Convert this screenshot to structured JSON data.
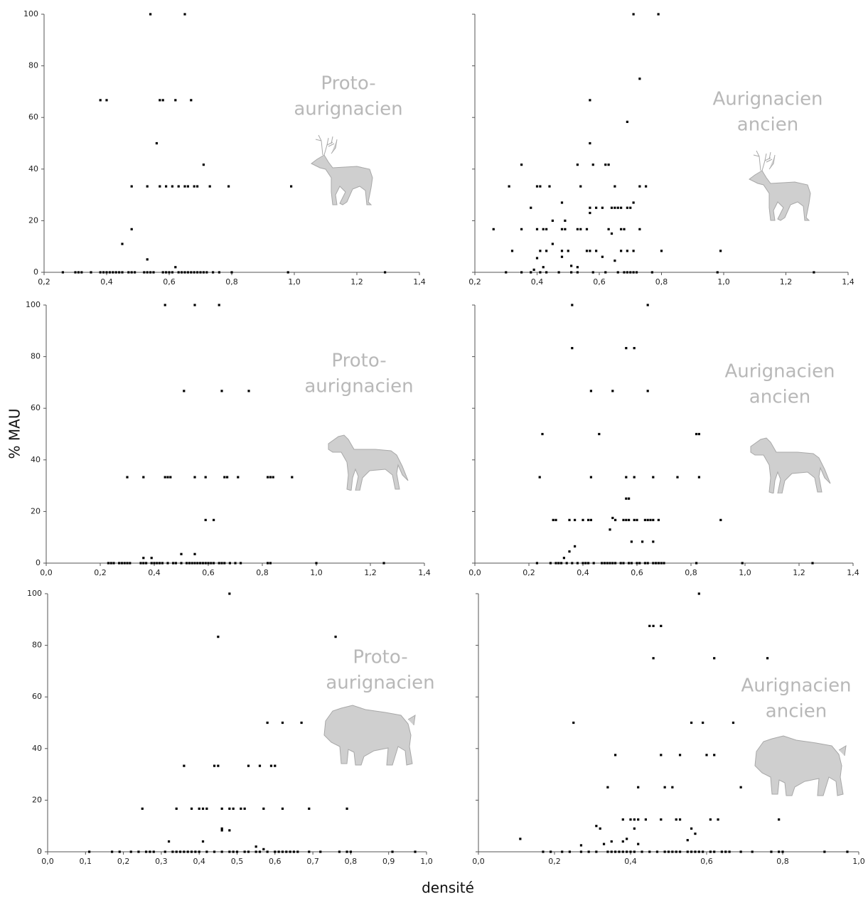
{
  "y_label": "% MAU",
  "x_label": "densité",
  "chart_data": [
    {
      "type": "scatter",
      "annotation": [
        "Proto-",
        "aurignacien"
      ],
      "color": "#000000",
      "ytick_labels": true,
      "xlim": [
        0.2,
        1.4
      ],
      "ylim": [
        0,
        100
      ],
      "xticks": [
        {
          "value": 0.2,
          "label": "0,2"
        },
        {
          "value": 0.4,
          "label": "0,4"
        },
        {
          "value": 0.6,
          "label": "0,6"
        },
        {
          "value": 0.8,
          "label": "0,8"
        },
        {
          "value": 1.0,
          "label": "1,0"
        },
        {
          "value": 1.2,
          "label": "1,2"
        },
        {
          "value": 1.4,
          "label": "1,4"
        }
      ],
      "yticks": [
        0,
        20,
        40,
        60,
        80,
        100
      ],
      "x": [
        0.26,
        0.3,
        0.31,
        0.32,
        0.35,
        0.38,
        0.39,
        0.4,
        0.41,
        0.42,
        0.43,
        0.44,
        0.45,
        0.47,
        0.48,
        0.49,
        0.52,
        0.53,
        0.54,
        0.55,
        0.58,
        0.59,
        0.6,
        0.61,
        0.63,
        0.64,
        0.65,
        0.66,
        0.67,
        0.68,
        0.69,
        0.7,
        0.71,
        0.72,
        0.74,
        0.76,
        0.8,
        0.98,
        1.29,
        0.54,
        0.65,
        0.38,
        0.4,
        0.57,
        0.58,
        0.62,
        0.67,
        0.56,
        0.71,
        0.48,
        0.53,
        0.57,
        0.59,
        0.61,
        0.63,
        0.65,
        0.66,
        0.68,
        0.69,
        0.73,
        0.79,
        0.99,
        0.48,
        0.45,
        0.53,
        0.62
      ],
      "values": [
        0,
        0,
        0,
        0,
        0,
        0,
        0,
        0,
        0,
        0,
        0,
        0,
        0,
        0,
        0,
        0,
        0,
        0,
        0,
        0,
        0,
        0,
        0,
        0,
        0,
        0,
        0,
        0,
        0,
        0,
        0,
        0,
        0,
        0,
        0,
        0,
        0,
        0,
        0,
        100,
        100,
        66.7,
        66.7,
        66.7,
        66.7,
        66.7,
        66.7,
        50,
        41.7,
        33.3,
        33.3,
        33.3,
        33.3,
        33.3,
        33.3,
        33.3,
        33.3,
        33.3,
        33.3,
        33.3,
        33.3,
        33.3,
        16.7,
        11,
        5,
        2
      ]
    },
    {
      "type": "scatter",
      "annotation": [
        "Aurignacien",
        "ancien"
      ],
      "color": "#000000",
      "ytick_labels": false,
      "xlim": [
        0.2,
        1.4
      ],
      "ylim": [
        0,
        100
      ],
      "xticks": [
        {
          "value": 0.2,
          "label": "0,2"
        },
        {
          "value": 0.4,
          "label": "0,4"
        },
        {
          "value": 0.6,
          "label": "0,6"
        },
        {
          "value": 0.8,
          "label": "0,8"
        },
        {
          "value": 1.0,
          "label": "1,0"
        },
        {
          "value": 1.2,
          "label": "1,2"
        },
        {
          "value": 1.4,
          "label": "1,4"
        }
      ],
      "yticks": [
        0,
        20,
        40,
        60,
        80,
        100
      ],
      "x": [
        0.3,
        0.35,
        0.38,
        0.41,
        0.43,
        0.47,
        0.51,
        0.53,
        0.58,
        0.62,
        0.66,
        0.68,
        0.69,
        0.7,
        0.71,
        0.72,
        0.77,
        0.98,
        1.29,
        0.71,
        0.79,
        0.73,
        0.57,
        0.69,
        0.57,
        0.35,
        0.53,
        0.58,
        0.62,
        0.63,
        0.31,
        0.4,
        0.41,
        0.44,
        0.54,
        0.65,
        0.73,
        0.75,
        0.48,
        0.71,
        0.38,
        0.57,
        0.59,
        0.61,
        0.64,
        0.65,
        0.66,
        0.67,
        0.69,
        0.7,
        0.57,
        0.49,
        0.45,
        0.26,
        0.35,
        0.4,
        0.42,
        0.43,
        0.48,
        0.49,
        0.53,
        0.54,
        0.56,
        0.63,
        0.67,
        0.68,
        0.73,
        0.64,
        0.45,
        0.32,
        0.41,
        0.43,
        0.48,
        0.5,
        0.56,
        0.57,
        0.59,
        0.67,
        0.69,
        0.71,
        0.8,
        0.99,
        0.4,
        0.48,
        0.61,
        0.65,
        0.42,
        0.39,
        0.51,
        0.53
      ],
      "values": [
        0,
        0,
        0,
        0,
        0,
        0,
        0,
        0,
        0,
        0,
        0,
        0,
        0,
        0,
        0,
        0,
        0,
        0,
        0,
        100,
        100,
        75,
        66.7,
        58.3,
        50,
        41.7,
        41.7,
        41.7,
        41.7,
        41.7,
        33.3,
        33.3,
        33.3,
        33.3,
        33.3,
        33.3,
        33.3,
        33.3,
        27,
        27,
        25,
        25,
        25,
        25,
        25,
        25,
        25,
        25,
        25,
        25,
        23,
        20,
        20,
        16.7,
        16.7,
        16.7,
        16.7,
        16.7,
        16.7,
        16.7,
        16.7,
        16.7,
        16.7,
        16.7,
        16.7,
        16.7,
        16.7,
        15,
        11,
        8.3,
        8.3,
        8.3,
        8.3,
        8.3,
        8.3,
        8.3,
        8.3,
        8.3,
        8.3,
        8.3,
        8.3,
        8.3,
        5.5,
        6,
        6,
        4.5,
        2,
        1,
        2.5,
        2
      ]
    },
    {
      "type": "scatter",
      "annotation": [
        "Proto-",
        "aurignacien"
      ],
      "color": "#000000",
      "ytick_labels": true,
      "xlim": [
        0.0,
        1.4
      ],
      "ylim": [
        0,
        100
      ],
      "xticks": [
        {
          "value": 0.0,
          "label": "0,0"
        },
        {
          "value": 0.2,
          "label": "0,2"
        },
        {
          "value": 0.4,
          "label": "0,4"
        },
        {
          "value": 0.6,
          "label": "0,6"
        },
        {
          "value": 0.8,
          "label": "0,8"
        },
        {
          "value": 1.0,
          "label": "1,0"
        },
        {
          "value": 1.2,
          "label": "1,2"
        },
        {
          "value": 1.4,
          "label": "1,4"
        }
      ],
      "yticks": [
        0,
        20,
        40,
        60,
        80,
        100
      ],
      "x": [
        0.23,
        0.24,
        0.25,
        0.27,
        0.28,
        0.29,
        0.3,
        0.31,
        0.35,
        0.36,
        0.37,
        0.39,
        0.4,
        0.41,
        0.42,
        0.43,
        0.45,
        0.47,
        0.48,
        0.5,
        0.52,
        0.53,
        0.54,
        0.55,
        0.56,
        0.57,
        0.58,
        0.59,
        0.6,
        0.61,
        0.62,
        0.64,
        0.65,
        0.66,
        0.68,
        0.7,
        0.72,
        0.82,
        0.83,
        1.0,
        1.25,
        0.44,
        0.55,
        0.64,
        0.51,
        0.65,
        0.75,
        0.3,
        0.36,
        0.44,
        0.45,
        0.46,
        0.55,
        0.59,
        0.66,
        0.67,
        0.71,
        0.82,
        0.83,
        0.84,
        0.91,
        0.59,
        0.62,
        0.5,
        0.55,
        0.36,
        0.39
      ],
      "values": [
        0,
        0,
        0,
        0,
        0,
        0,
        0,
        0,
        0,
        0,
        0,
        0,
        0,
        0,
        0,
        0,
        0,
        0,
        0,
        0,
        0,
        0,
        0,
        0,
        0,
        0,
        0,
        0,
        0,
        0,
        0,
        0,
        0,
        0,
        0,
        0,
        0,
        0,
        0,
        0,
        0,
        100,
        100,
        100,
        66.7,
        66.7,
        66.7,
        33.3,
        33.3,
        33.3,
        33.3,
        33.3,
        33.3,
        33.3,
        33.3,
        33.3,
        33.3,
        33.3,
        33.3,
        33.3,
        33.3,
        16.7,
        16.7,
        3.5,
        3.5,
        2,
        2
      ]
    },
    {
      "type": "scatter",
      "annotation": [
        "Aurignacien",
        "ancien"
      ],
      "color": "#000000",
      "ytick_labels": false,
      "xlim": [
        0.0,
        1.4
      ],
      "ylim": [
        0,
        100
      ],
      "xticks": [
        {
          "value": 0.0,
          "label": "0,0"
        },
        {
          "value": 0.2,
          "label": "0,2"
        },
        {
          "value": 0.4,
          "label": "0,4"
        },
        {
          "value": 0.6,
          "label": "0,6"
        },
        {
          "value": 0.8,
          "label": "0,8"
        },
        {
          "value": 1.0,
          "label": "1,0"
        },
        {
          "value": 1.2,
          "label": "1,2"
        },
        {
          "value": 1.4,
          "label": "1,4"
        }
      ],
      "yticks": [
        0,
        20,
        40,
        60,
        80,
        100
      ],
      "x": [
        0.23,
        0.28,
        0.3,
        0.31,
        0.32,
        0.34,
        0.36,
        0.38,
        0.4,
        0.41,
        0.42,
        0.44,
        0.47,
        0.48,
        0.49,
        0.5,
        0.51,
        0.52,
        0.54,
        0.55,
        0.57,
        0.58,
        0.6,
        0.61,
        0.63,
        0.64,
        0.66,
        0.67,
        0.68,
        0.69,
        0.7,
        0.82,
        0.99,
        1.25,
        0.36,
        0.64,
        0.36,
        0.56,
        0.59,
        0.43,
        0.51,
        0.64,
        0.25,
        0.46,
        0.82,
        0.83,
        0.24,
        0.43,
        0.56,
        0.59,
        0.66,
        0.75,
        0.83,
        0.56,
        0.57,
        0.29,
        0.3,
        0.35,
        0.37,
        0.4,
        0.42,
        0.43,
        0.51,
        0.52,
        0.55,
        0.56,
        0.57,
        0.59,
        0.6,
        0.63,
        0.64,
        0.65,
        0.66,
        0.68,
        0.91,
        0.5,
        0.35,
        0.37,
        0.33,
        0.58,
        0.62,
        0.66
      ],
      "values": [
        0,
        0,
        0,
        0,
        0,
        0,
        0,
        0,
        0,
        0,
        0,
        0,
        0,
        0,
        0,
        0,
        0,
        0,
        0,
        0,
        0,
        0,
        0,
        0,
        0,
        0,
        0,
        0,
        0,
        0,
        0,
        0,
        0,
        0,
        100,
        100,
        83.3,
        83.3,
        83.3,
        66.7,
        66.7,
        66.7,
        50,
        50,
        50,
        50,
        33.3,
        33.3,
        33.3,
        33.3,
        33.3,
        33.3,
        33.3,
        25,
        25,
        16.7,
        16.7,
        16.7,
        16.7,
        16.7,
        16.7,
        16.7,
        17.5,
        16.7,
        16.7,
        16.7,
        16.7,
        16.7,
        16.7,
        16.7,
        16.7,
        16.7,
        16.7,
        16.7,
        16.7,
        13,
        4.5,
        6.5,
        2,
        8.3,
        8.3,
        8.3
      ]
    },
    {
      "type": "scatter",
      "annotation": [
        "Proto-",
        "aurignacien"
      ],
      "color": "#000000",
      "ytick_labels": true,
      "xlim": [
        0.0,
        1.0
      ],
      "ylim": [
        0,
        100
      ],
      "xticks": [
        {
          "value": 0.0,
          "label": "0,0"
        },
        {
          "value": 0.1,
          "label": "0,1"
        },
        {
          "value": 0.2,
          "label": "0,2"
        },
        {
          "value": 0.3,
          "label": "0,3"
        },
        {
          "value": 0.4,
          "label": "0,4"
        },
        {
          "value": 0.5,
          "label": "0,5"
        },
        {
          "value": 0.6,
          "label": "0,6"
        },
        {
          "value": 0.7,
          "label": "0,7"
        },
        {
          "value": 0.8,
          "label": "0,8"
        },
        {
          "value": 0.9,
          "label": "0,9"
        },
        {
          "value": 1.0,
          "label": "1,0"
        }
      ],
      "yticks": [
        0,
        20,
        40,
        60,
        80,
        100
      ],
      "x": [
        0.11,
        0.17,
        0.19,
        0.22,
        0.24,
        0.26,
        0.27,
        0.28,
        0.31,
        0.33,
        0.34,
        0.35,
        0.36,
        0.37,
        0.38,
        0.39,
        0.4,
        0.42,
        0.44,
        0.46,
        0.48,
        0.49,
        0.5,
        0.52,
        0.53,
        0.55,
        0.56,
        0.58,
        0.6,
        0.61,
        0.62,
        0.63,
        0.64,
        0.65,
        0.66,
        0.69,
        0.72,
        0.77,
        0.79,
        0.8,
        0.91,
        0.97,
        0.48,
        0.45,
        0.76,
        0.58,
        0.62,
        0.67,
        0.36,
        0.44,
        0.45,
        0.53,
        0.56,
        0.59,
        0.6,
        0.25,
        0.34,
        0.38,
        0.4,
        0.41,
        0.42,
        0.46,
        0.48,
        0.49,
        0.51,
        0.52,
        0.57,
        0.62,
        0.69,
        0.79,
        0.46,
        0.46,
        0.48,
        0.32,
        0.41,
        0.55,
        0.57
      ],
      "values": [
        0,
        0,
        0,
        0,
        0,
        0,
        0,
        0,
        0,
        0,
        0,
        0,
        0,
        0,
        0,
        0,
        0,
        0,
        0,
        0,
        0,
        0,
        0,
        0,
        0,
        0,
        0,
        0,
        0,
        0,
        0,
        0,
        0,
        0,
        0,
        0,
        0,
        0,
        0,
        0,
        0,
        0,
        100,
        83.3,
        83.3,
        50,
        50,
        50,
        33.3,
        33.3,
        33.3,
        33.3,
        33.3,
        33.3,
        33.3,
        16.7,
        16.7,
        16.7,
        16.7,
        16.7,
        16.7,
        16.7,
        16.7,
        16.7,
        16.7,
        16.7,
        16.7,
        16.7,
        16.7,
        16.7,
        9,
        8.3,
        8.3,
        4,
        4,
        2,
        1
      ]
    },
    {
      "type": "scatter",
      "annotation": [
        "Aurignacien",
        "ancien"
      ],
      "color": "#000000",
      "ytick_labels": false,
      "xlim": [
        0.0,
        1.0
      ],
      "ylim": [
        0,
        100
      ],
      "xticks": [
        {
          "value": 0.0,
          "label": "0,0"
        },
        {
          "value": 0.2,
          "label": "0,2"
        },
        {
          "value": 0.4,
          "label": "0,4"
        },
        {
          "value": 0.6,
          "label": "0,6"
        },
        {
          "value": 0.8,
          "label": "0,8"
        },
        {
          "value": 1.0,
          "label": "1,0"
        }
      ],
      "yticks": [
        0,
        20,
        40,
        60,
        80,
        100
      ],
      "x": [
        0.17,
        0.19,
        0.22,
        0.24,
        0.27,
        0.29,
        0.31,
        0.34,
        0.35,
        0.36,
        0.37,
        0.38,
        0.39,
        0.4,
        0.41,
        0.43,
        0.45,
        0.47,
        0.49,
        0.5,
        0.51,
        0.52,
        0.53,
        0.55,
        0.56,
        0.57,
        0.58,
        0.59,
        0.61,
        0.62,
        0.64,
        0.65,
        0.66,
        0.69,
        0.72,
        0.77,
        0.79,
        0.8,
        0.91,
        0.97,
        0.11,
        0.58,
        0.45,
        0.46,
        0.48,
        0.46,
        0.62,
        0.76,
        0.25,
        0.56,
        0.59,
        0.67,
        0.36,
        0.48,
        0.53,
        0.6,
        0.62,
        0.34,
        0.42,
        0.49,
        0.51,
        0.69,
        0.38,
        0.4,
        0.41,
        0.42,
        0.44,
        0.48,
        0.52,
        0.53,
        0.61,
        0.63,
        0.79,
        0.31,
        0.32,
        0.41,
        0.57,
        0.56,
        0.33,
        0.35,
        0.38,
        0.39,
        0.27,
        0.42,
        0.55
      ],
      "values": [
        0,
        0,
        0,
        0,
        0,
        0,
        0,
        0,
        0,
        0,
        0,
        0,
        0,
        0,
        0,
        0,
        0,
        0,
        0,
        0,
        0,
        0,
        0,
        0,
        0,
        0,
        0,
        0,
        0,
        0,
        0,
        0,
        0,
        0,
        0,
        0,
        0,
        0,
        0,
        0,
        5,
        100,
        87.5,
        87.5,
        87.5,
        75,
        75,
        75,
        50,
        50,
        50,
        50,
        37.5,
        37.5,
        37.5,
        37.5,
        37.5,
        25,
        25,
        25,
        25,
        25,
        12.5,
        12.5,
        12.5,
        12.5,
        12.5,
        12.5,
        12.5,
        12.5,
        12.5,
        12.5,
        12.5,
        10,
        9,
        9,
        7,
        9,
        3,
        4,
        4,
        5,
        2.5,
        3,
        4.5
      ]
    }
  ]
}
